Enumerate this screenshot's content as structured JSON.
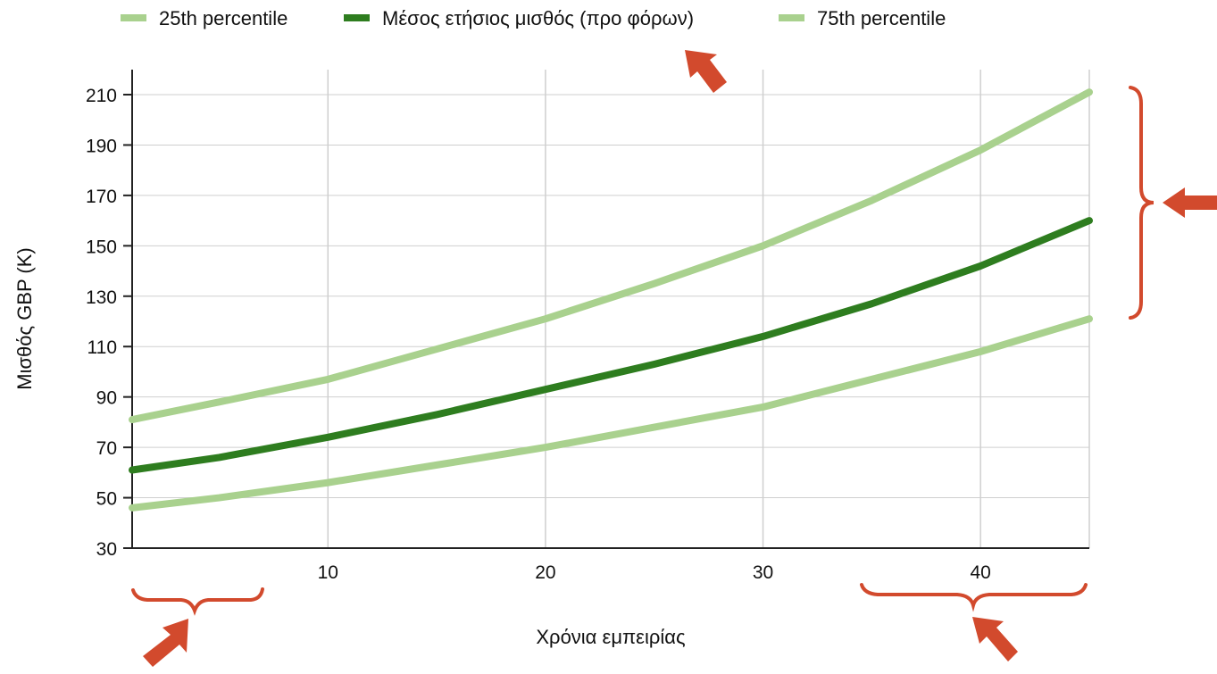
{
  "chart_data": {
    "type": "line",
    "title": "",
    "xlabel": "Χρόνια εμπειρίας",
    "ylabel": "Μισθός GBP (K)",
    "xlim": [
      1,
      45
    ],
    "ylim": [
      30,
      210
    ],
    "x_ticks": [
      10,
      20,
      30,
      40
    ],
    "y_ticks": [
      30,
      50,
      70,
      90,
      110,
      130,
      150,
      170,
      190,
      210
    ],
    "grid": true,
    "legend_position": "top",
    "series": [
      {
        "name": "25th percentile",
        "color": "#a9d18e",
        "x": [
          1,
          5,
          10,
          15,
          20,
          25,
          30,
          35,
          40,
          45
        ],
        "values": [
          46,
          50,
          56,
          63,
          70,
          78,
          86,
          97,
          108,
          121
        ]
      },
      {
        "name": "Μέσος ετήσιος μισθός (προ φόρων)",
        "color": "#2e7d1f",
        "x": [
          1,
          5,
          10,
          15,
          20,
          25,
          30,
          35,
          40,
          45
        ],
        "values": [
          61,
          66,
          74,
          83,
          93,
          103,
          114,
          127,
          142,
          160
        ]
      },
      {
        "name": "75th percentile",
        "color": "#a9d18e",
        "x": [
          1,
          5,
          10,
          15,
          20,
          25,
          30,
          35,
          40,
          45
        ],
        "values": [
          81,
          88,
          97,
          109,
          121,
          135,
          150,
          168,
          188,
          211
        ]
      }
    ]
  },
  "annotations": {
    "color": "#d24a2d",
    "arrows": [
      "arrow-legend-median",
      "arrow-upper-right-bracket",
      "arrow-early-years",
      "arrow-late-years"
    ],
    "brackets": [
      "bracket-right-spread",
      "bracket-early-years",
      "bracket-late-years"
    ]
  }
}
